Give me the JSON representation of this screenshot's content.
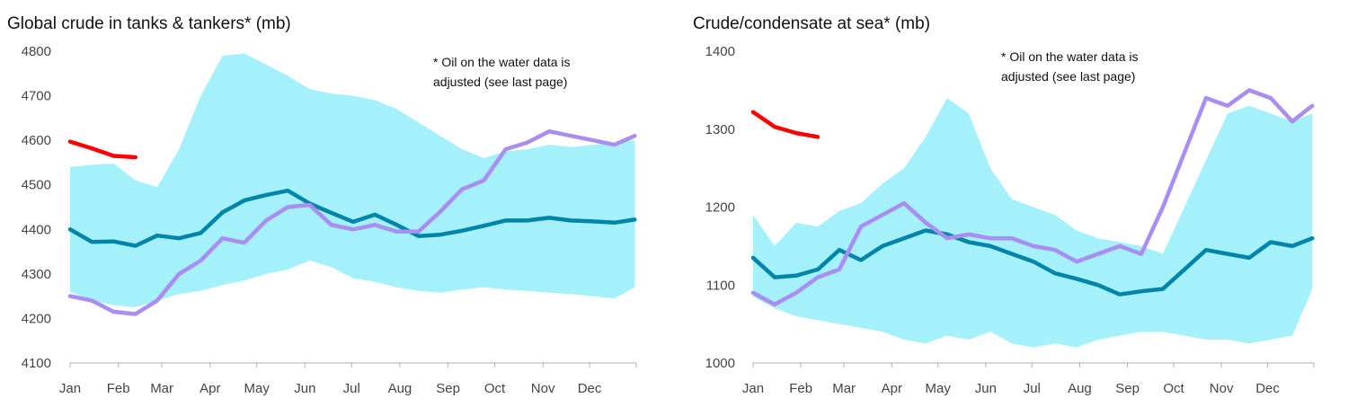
{
  "chart_data": [
    {
      "type": "area",
      "title": "Global crude in tanks & tankers* (mb)",
      "note": [
        "* Oil on the water data is",
        "adjusted (see last page)"
      ],
      "xlabel": "",
      "ylabel": "",
      "ylim": [
        4100,
        4800
      ],
      "yticks": [
        4100,
        4200,
        4300,
        4400,
        4500,
        4600,
        4700,
        4800
      ],
      "categories": [
        "Jan",
        "Feb",
        "Mar",
        "Apr",
        "May",
        "Jun",
        "Jul",
        "Aug",
        "Sep",
        "Oct",
        "Nov",
        "Dec"
      ],
      "x": [
        1,
        15,
        29,
        43,
        57,
        71,
        85,
        99,
        113,
        127,
        141,
        155,
        169,
        183,
        197,
        211,
        225,
        239,
        253,
        267,
        281,
        295,
        309,
        323,
        337,
        351,
        364
      ],
      "band": {
        "min": [
          4260,
          4240,
          4230,
          4225,
          4240,
          4255,
          4262,
          4275,
          4285,
          4300,
          4310,
          4330,
          4315,
          4290,
          4282,
          4270,
          4262,
          4258,
          4265,
          4270,
          4265,
          4262,
          4258,
          4255,
          4250,
          4245,
          4270
        ],
        "max": [
          4540,
          4545,
          4548,
          4510,
          4495,
          4580,
          4700,
          4790,
          4795,
          4770,
          4745,
          4715,
          4705,
          4700,
          4690,
          4670,
          4640,
          4610,
          4580,
          4560,
          4575,
          4580,
          4590,
          4585,
          4590,
          4595,
          4600
        ]
      },
      "series": [
        {
          "color": "#0085a8",
          "values": [
            4400,
            4372,
            4373,
            4363,
            4386,
            4380,
            4392,
            4438,
            4465,
            4477,
            4487,
            4458,
            4437,
            4417,
            4433,
            4410,
            4385,
            4388,
            4397,
            4408,
            4420,
            4420,
            4426,
            4420,
            4418,
            4415,
            4422
          ]
        },
        {
          "color": "#a98df0",
          "values": [
            4250,
            4240,
            4215,
            4210,
            4240,
            4300,
            4330,
            4380,
            4370,
            4420,
            4450,
            4455,
            4410,
            4400,
            4410,
            4395,
            4395,
            4440,
            4490,
            4510,
            4580,
            4595,
            4620,
            4610,
            4600,
            4590,
            4610
          ]
        },
        {
          "color": "#ff0000",
          "values": [
            4597,
            4582,
            4565,
            4562,
            null,
            null,
            null,
            null,
            null,
            null,
            null,
            null,
            null,
            null,
            null,
            null,
            null,
            null,
            null,
            null,
            null,
            null,
            null,
            null,
            null,
            null,
            null
          ]
        }
      ],
      "band_color": "#a4f1fb"
    },
    {
      "type": "area",
      "title": "Crude/condensate at sea* (mb)",
      "note": [
        "* Oil on the water data is",
        "adjusted (see last page)"
      ],
      "xlabel": "",
      "ylabel": "",
      "ylim": [
        1000,
        1400
      ],
      "yticks": [
        1000,
        1100,
        1200,
        1300,
        1400
      ],
      "categories": [
        "Jan",
        "Feb",
        "Mar",
        "Apr",
        "May",
        "Jun",
        "Jul",
        "Aug",
        "Sep",
        "Oct",
        "Nov",
        "Dec"
      ],
      "x": [
        1,
        15,
        29,
        43,
        57,
        71,
        85,
        99,
        113,
        127,
        141,
        155,
        169,
        183,
        197,
        211,
        225,
        239,
        253,
        267,
        281,
        295,
        309,
        323,
        337,
        351,
        364
      ],
      "band": {
        "min": [
          1085,
          1070,
          1060,
          1055,
          1050,
          1045,
          1040,
          1030,
          1025,
          1035,
          1030,
          1040,
          1025,
          1020,
          1025,
          1020,
          1030,
          1035,
          1040,
          1040,
          1035,
          1030,
          1030,
          1025,
          1030,
          1035,
          1095
        ],
        "max": [
          1190,
          1150,
          1180,
          1175,
          1195,
          1205,
          1230,
          1250,
          1290,
          1340,
          1320,
          1250,
          1210,
          1200,
          1190,
          1170,
          1160,
          1155,
          1150,
          1140,
          1200,
          1260,
          1320,
          1330,
          1320,
          1310,
          1320
        ]
      },
      "series": [
        {
          "color": "#0085a8",
          "values": [
            1135,
            1110,
            1112,
            1120,
            1145,
            1132,
            1150,
            1160,
            1170,
            1165,
            1155,
            1150,
            1140,
            1130,
            1115,
            1108,
            1100,
            1088,
            1092,
            1095,
            1120,
            1145,
            1140,
            1135,
            1155,
            1150,
            1160
          ]
        },
        {
          "color": "#a98df0",
          "values": [
            1090,
            1075,
            1090,
            1110,
            1120,
            1175,
            1190,
            1205,
            1180,
            1160,
            1165,
            1160,
            1160,
            1150,
            1145,
            1130,
            1140,
            1150,
            1140,
            1200,
            1270,
            1340,
            1330,
            1350,
            1340,
            1310,
            1330
          ]
        },
        {
          "color": "#ff0000",
          "values": [
            1322,
            1303,
            1295,
            1290,
            null,
            null,
            null,
            null,
            null,
            null,
            null,
            null,
            null,
            null,
            null,
            null,
            null,
            null,
            null,
            null,
            null,
            null,
            null,
            null,
            null,
            null,
            null
          ]
        }
      ],
      "band_color": "#a4f1fb"
    }
  ]
}
